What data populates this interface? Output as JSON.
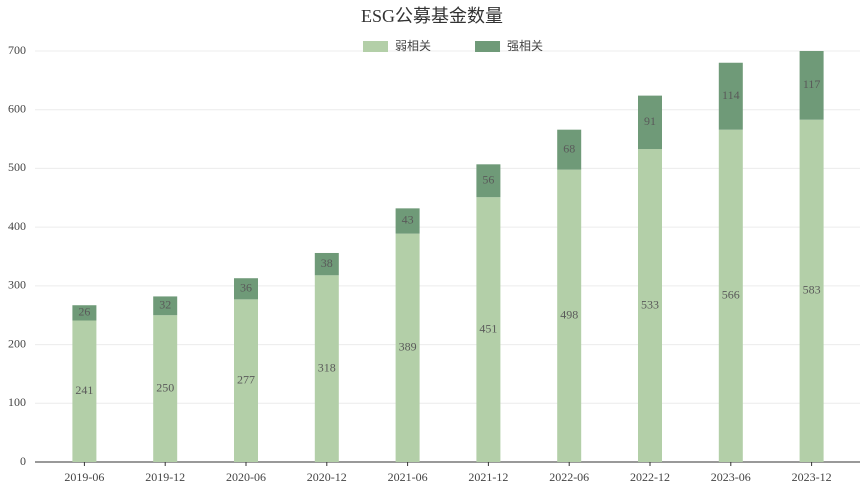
{
  "chart_data": {
    "type": "stacked_bar",
    "title": "ESG公募基金数量",
    "categories": [
      "2019-06",
      "2019-12",
      "2020-06",
      "2020-12",
      "2021-06",
      "2021-12",
      "2022-06",
      "2022-12",
      "2023-06",
      "2023-12"
    ],
    "series": [
      {
        "name": "弱相关",
        "color": "#b3cfa8",
        "values": [
          241,
          250,
          277,
          318,
          389,
          451,
          498,
          533,
          566,
          583
        ]
      },
      {
        "name": "强相关",
        "color": "#6f9a78",
        "values": [
          26,
          32,
          36,
          38,
          43,
          56,
          68,
          91,
          114,
          117
        ]
      }
    ],
    "ylim": [
      0,
      700
    ],
    "yticks": [
      0,
      100,
      200,
      300,
      400,
      500,
      600,
      700
    ],
    "grid": true,
    "legend": "top"
  }
}
